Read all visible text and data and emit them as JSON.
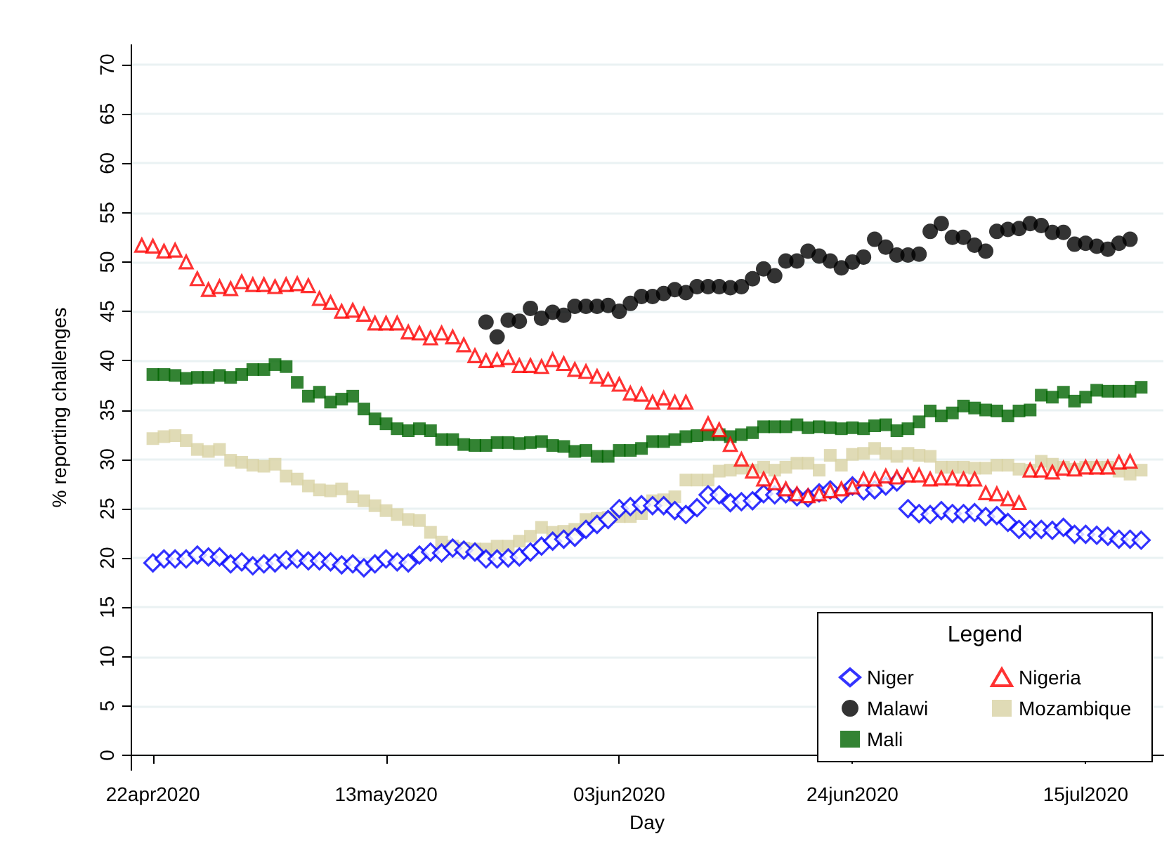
{
  "chart_data": {
    "type": "scatter",
    "xlabel": "Day",
    "ylabel": "% reporting challenges",
    "legend_title": "Legend",
    "legend": "bottom right",
    "grid": "y",
    "x": [
      "2020-04-21",
      "2020-04-22",
      "2020-04-23",
      "2020-04-24",
      "2020-04-25",
      "2020-04-26",
      "2020-04-27",
      "2020-04-28",
      "2020-04-29",
      "2020-04-30",
      "2020-05-01",
      "2020-05-02",
      "2020-05-03",
      "2020-05-04",
      "2020-05-05",
      "2020-05-06",
      "2020-05-07",
      "2020-05-08",
      "2020-05-09",
      "2020-05-10",
      "2020-05-11",
      "2020-05-12",
      "2020-05-13",
      "2020-05-14",
      "2020-05-15",
      "2020-05-16",
      "2020-05-17",
      "2020-05-18",
      "2020-05-19",
      "2020-05-20",
      "2020-05-21",
      "2020-05-22",
      "2020-05-23",
      "2020-05-24",
      "2020-05-25",
      "2020-05-26",
      "2020-05-27",
      "2020-05-28",
      "2020-05-29",
      "2020-05-30",
      "2020-05-31",
      "2020-06-01",
      "2020-06-02",
      "2020-06-03",
      "2020-06-04",
      "2020-06-05",
      "2020-06-06",
      "2020-06-07",
      "2020-06-08",
      "2020-06-09",
      "2020-06-10",
      "2020-06-11",
      "2020-06-12",
      "2020-06-13",
      "2020-06-14",
      "2020-06-15",
      "2020-06-16",
      "2020-06-17",
      "2020-06-18",
      "2020-06-19",
      "2020-06-20",
      "2020-06-21",
      "2020-06-22",
      "2020-06-23",
      "2020-06-24",
      "2020-06-25",
      "2020-06-26",
      "2020-06-27",
      "2020-06-28",
      "2020-06-29",
      "2020-06-30",
      "2020-07-01",
      "2020-07-02",
      "2020-07-03",
      "2020-07-04",
      "2020-07-05",
      "2020-07-06",
      "2020-07-07",
      "2020-07-08",
      "2020-07-09",
      "2020-07-10",
      "2020-07-11",
      "2020-07-12",
      "2020-07-13",
      "2020-07-14",
      "2020-07-15",
      "2020-07-16",
      "2020-07-17",
      "2020-07-18",
      "2020-07-19",
      "2020-07-20"
    ],
    "xlim": [
      "2020-04-20",
      "2020-07-22"
    ],
    "xticks": [
      {
        "value": "2020-04-22",
        "label": "22apr2020"
      },
      {
        "value": "2020-05-13",
        "label": "13may2020"
      },
      {
        "value": "2020-06-03",
        "label": "03jun2020"
      },
      {
        "value": "2020-06-24",
        "label": "24jun2020"
      },
      {
        "value": "2020-07-15",
        "label": "15jul2020"
      }
    ],
    "ylim": [
      -1.5,
      72
    ],
    "yticks": [
      0,
      5,
      10,
      15,
      20,
      25,
      30,
      35,
      40,
      45,
      50,
      55,
      60,
      65,
      70
    ],
    "series": [
      {
        "name": "Niger",
        "color": "#0000ff",
        "marker": "diamond",
        "values": [
          null,
          19.5,
          19.9,
          19.9,
          19.9,
          20.3,
          20.1,
          20.1,
          19.4,
          19.6,
          19.2,
          19.4,
          19.5,
          19.8,
          19.9,
          19.7,
          19.7,
          19.6,
          19.3,
          19.4,
          19.0,
          19.4,
          19.9,
          19.6,
          19.5,
          20.3,
          20.6,
          20.5,
          21.0,
          20.8,
          20.6,
          19.9,
          19.9,
          20.0,
          20.1,
          20.6,
          21.2,
          21.7,
          21.9,
          22.1,
          22.9,
          23.4,
          23.9,
          25.0,
          25.2,
          25.4,
          25.3,
          25.3,
          24.8,
          24.4,
          25.1,
          26.4,
          26.4,
          25.6,
          25.7,
          25.8,
          26.5,
          26.4,
          26.5,
          26.2,
          26.1,
          26.6,
          26.9,
          26.5,
          27.3,
          26.8,
          26.9,
          27.3,
          27.7,
          25.0,
          24.5,
          24.4,
          24.8,
          24.5,
          24.5,
          24.6,
          24.2,
          24.3,
          23.6,
          22.9,
          22.9,
          22.9,
          22.8,
          23.1,
          22.4,
          22.4,
          22.3,
          22.2,
          21.9,
          21.9,
          21.8
        ]
      },
      {
        "name": "Nigeria",
        "color": "#ff0000",
        "marker": "triangle",
        "values": [
          51.7,
          51.6,
          51.1,
          51.2,
          50.0,
          48.3,
          47.2,
          47.5,
          47.3,
          48.0,
          47.7,
          47.7,
          47.5,
          47.7,
          47.8,
          47.6,
          46.3,
          45.9,
          45.0,
          45.1,
          44.7,
          43.8,
          43.8,
          43.8,
          42.9,
          42.8,
          42.3,
          42.8,
          42.4,
          41.6,
          40.5,
          40.0,
          40.1,
          40.3,
          39.5,
          39.5,
          39.4,
          40.1,
          39.7,
          39.1,
          38.9,
          38.4,
          38.1,
          37.6,
          36.7,
          36.6,
          35.8,
          36.2,
          35.8,
          35.8,
          null,
          33.6,
          33.0,
          31.5,
          30.0,
          28.8,
          28.0,
          27.6,
          27.0,
          26.5,
          26.3,
          26.5,
          26.8,
          27.0,
          27.2,
          28.0,
          28.0,
          28.3,
          28.2,
          28.4,
          28.4,
          28.0,
          28.1,
          28.1,
          28.0,
          28.0,
          26.6,
          26.5,
          26.0,
          25.6,
          28.9,
          28.9,
          28.7,
          29.1,
          29.0,
          29.2,
          29.2,
          29.2,
          29.7,
          29.8,
          null
        ]
      },
      {
        "name": "Malawi",
        "color": "#000000",
        "marker": "circle",
        "values": [
          null,
          null,
          null,
          null,
          null,
          null,
          null,
          null,
          null,
          null,
          null,
          null,
          null,
          null,
          null,
          null,
          null,
          null,
          null,
          null,
          null,
          null,
          null,
          null,
          null,
          null,
          null,
          null,
          null,
          null,
          null,
          43.9,
          42.4,
          44.1,
          44.0,
          45.3,
          44.3,
          44.9,
          44.6,
          45.5,
          45.5,
          45.5,
          45.6,
          45.0,
          45.8,
          46.5,
          46.5,
          46.8,
          47.2,
          46.9,
          47.5,
          47.5,
          47.5,
          47.4,
          47.5,
          48.3,
          49.3,
          48.6,
          50.1,
          50.1,
          51.1,
          50.6,
          50.1,
          49.4,
          50.0,
          50.5,
          52.3,
          51.5,
          50.7,
          50.7,
          50.8,
          53.1,
          53.9,
          52.5,
          52.5,
          51.7,
          51.1,
          53.1,
          53.3,
          53.4,
          53.9,
          53.7,
          53.0,
          53.0,
          51.8,
          51.9,
          51.6,
          51.3,
          51.9,
          52.3,
          null
        ]
      },
      {
        "name": "Mozambique",
        "color": "#d8d2a4",
        "marker": "square",
        "values": [
          null,
          32.1,
          32.3,
          32.4,
          31.9,
          31.0,
          30.8,
          31.0,
          29.9,
          29.7,
          29.4,
          29.3,
          29.5,
          28.3,
          28.0,
          27.3,
          26.9,
          26.8,
          27.0,
          26.2,
          25.8,
          25.3,
          24.8,
          24.4,
          23.9,
          23.8,
          22.6,
          21.6,
          21.2,
          21.0,
          20.9,
          20.9,
          21.2,
          21.2,
          21.7,
          22.2,
          23.1,
          22.6,
          22.7,
          22.9,
          23.9,
          24.0,
          24.1,
          24.2,
          24.2,
          24.5,
          25.8,
          25.9,
          26.2,
          27.9,
          27.9,
          27.9,
          28.8,
          28.9,
          29.1,
          28.9,
          29.2,
          28.9,
          29.2,
          29.6,
          29.6,
          28.9,
          30.4,
          29.4,
          30.5,
          30.6,
          31.1,
          30.6,
          30.3,
          30.6,
          30.4,
          30.3,
          29.2,
          29.2,
          29.2,
          29.1,
          29.1,
          29.4,
          29.4,
          29.0,
          28.9,
          29.8,
          29.5,
          29.2,
          29.0,
          29.2,
          29.2,
          29.2,
          28.8,
          28.5,
          28.9
        ]
      },
      {
        "name": "Mali",
        "color": "#006400",
        "marker": "square",
        "values": [
          null,
          38.6,
          38.6,
          38.5,
          38.2,
          38.3,
          38.3,
          38.5,
          38.3,
          38.6,
          39.1,
          39.1,
          39.6,
          39.4,
          37.8,
          36.4,
          36.8,
          35.8,
          36.1,
          36.4,
          35.1,
          34.1,
          33.6,
          33.1,
          32.9,
          33.1,
          32.9,
          32.0,
          32.0,
          31.5,
          31.4,
          31.4,
          31.7,
          31.7,
          31.6,
          31.7,
          31.8,
          31.4,
          31.3,
          30.8,
          30.9,
          30.3,
          30.3,
          30.9,
          30.9,
          31.1,
          31.8,
          31.8,
          32.0,
          32.3,
          32.4,
          32.5,
          32.5,
          32.3,
          32.5,
          32.7,
          33.3,
          33.3,
          33.3,
          33.5,
          33.2,
          33.3,
          33.2,
          33.1,
          33.2,
          33.1,
          33.4,
          33.5,
          32.9,
          33.1,
          33.8,
          34.9,
          34.4,
          34.7,
          35.4,
          35.2,
          35.0,
          34.9,
          34.4,
          34.9,
          35.0,
          36.5,
          36.3,
          36.8,
          35.9,
          36.3,
          37.0,
          36.9,
          36.9,
          36.9,
          37.3
        ]
      }
    ]
  }
}
